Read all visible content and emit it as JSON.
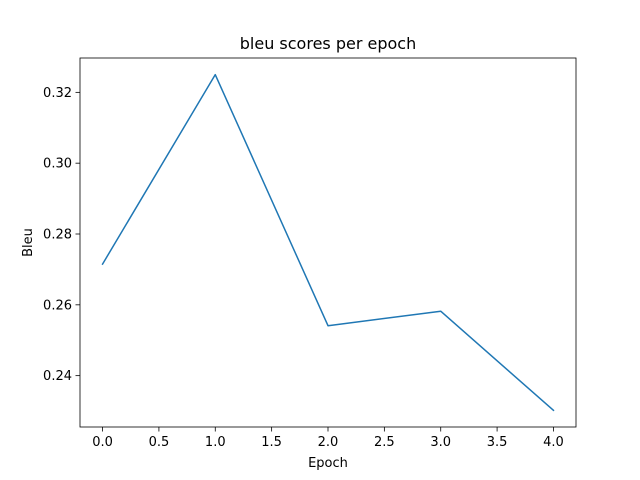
{
  "chart_data": {
    "type": "line",
    "title": "bleu scores per epoch",
    "xlabel": "Epoch",
    "ylabel": "Bleu",
    "x": [
      0,
      1,
      2,
      3,
      4
    ],
    "series": [
      {
        "values": [
          0.2715,
          0.325,
          0.2541,
          0.2582,
          0.2302
        ],
        "color": "#1f77b4"
      }
    ],
    "xlim": [
      -0.2,
      4.2
    ],
    "ylim": [
      0.2255,
      0.3297
    ],
    "xticks": [
      0.0,
      0.5,
      1.0,
      1.5,
      2.0,
      2.5,
      3.0,
      3.5,
      4.0
    ],
    "xtick_labels": [
      "0.0",
      "0.5",
      "1.0",
      "1.5",
      "2.0",
      "2.5",
      "3.0",
      "3.5",
      "4.0"
    ],
    "yticks": [
      0.24,
      0.26,
      0.28,
      0.3,
      0.32
    ],
    "ytick_labels": [
      "0.24",
      "0.26",
      "0.28",
      "0.30",
      "0.32"
    ],
    "grid": false,
    "legend": "none"
  }
}
